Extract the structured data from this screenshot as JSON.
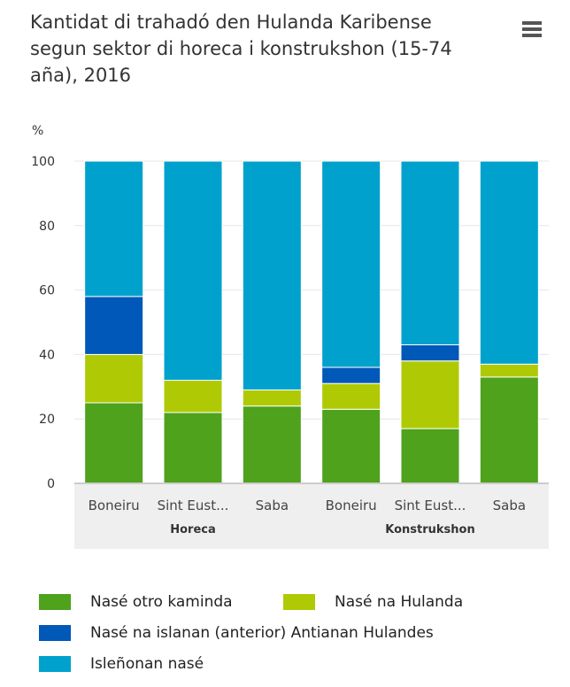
{
  "title": "Kantidat di trahadó den Hulanda Karibense segun sektor di horeca i konstrukshon (15-74 aña), 2016",
  "menu_icon": "hamburger-menu-icon",
  "chart_data": {
    "type": "bar",
    "stacked": true,
    "title": "Kantidat di trahadó den Hulanda Karibense segun sektor di horeca i konstrukshon (15-74 aña), 2016",
    "ylabel": "%",
    "ylim": [
      0,
      100
    ],
    "yticks": [
      0,
      20,
      40,
      60,
      80,
      100
    ],
    "grid": true,
    "legend_position": "bottom",
    "categories": [
      "Boneiru",
      "Sint Eust...",
      "Saba",
      "Boneiru",
      "Sint Eust...",
      "Saba"
    ],
    "groups": [
      {
        "label": "Horeca",
        "span": 3
      },
      {
        "label": "Konstrukshon",
        "span": 3
      }
    ],
    "series": [
      {
        "name": "Nasé otro kaminda",
        "color": "#4ea21c",
        "values": [
          25,
          22,
          24,
          23,
          17,
          33
        ]
      },
      {
        "name": "Nasé na Hulanda",
        "color": "#afca05",
        "values": [
          15,
          10,
          5,
          8,
          21,
          4
        ]
      },
      {
        "name": "Nasé na islanan (anterior) Antianan Hulandes",
        "color": "#0058b8",
        "values": [
          18,
          0,
          0,
          5,
          5,
          0
        ]
      },
      {
        "name": "Isleñonan nasé",
        "color": "#00a1cd",
        "values": [
          42,
          68,
          71,
          64,
          57,
          63
        ]
      }
    ]
  }
}
